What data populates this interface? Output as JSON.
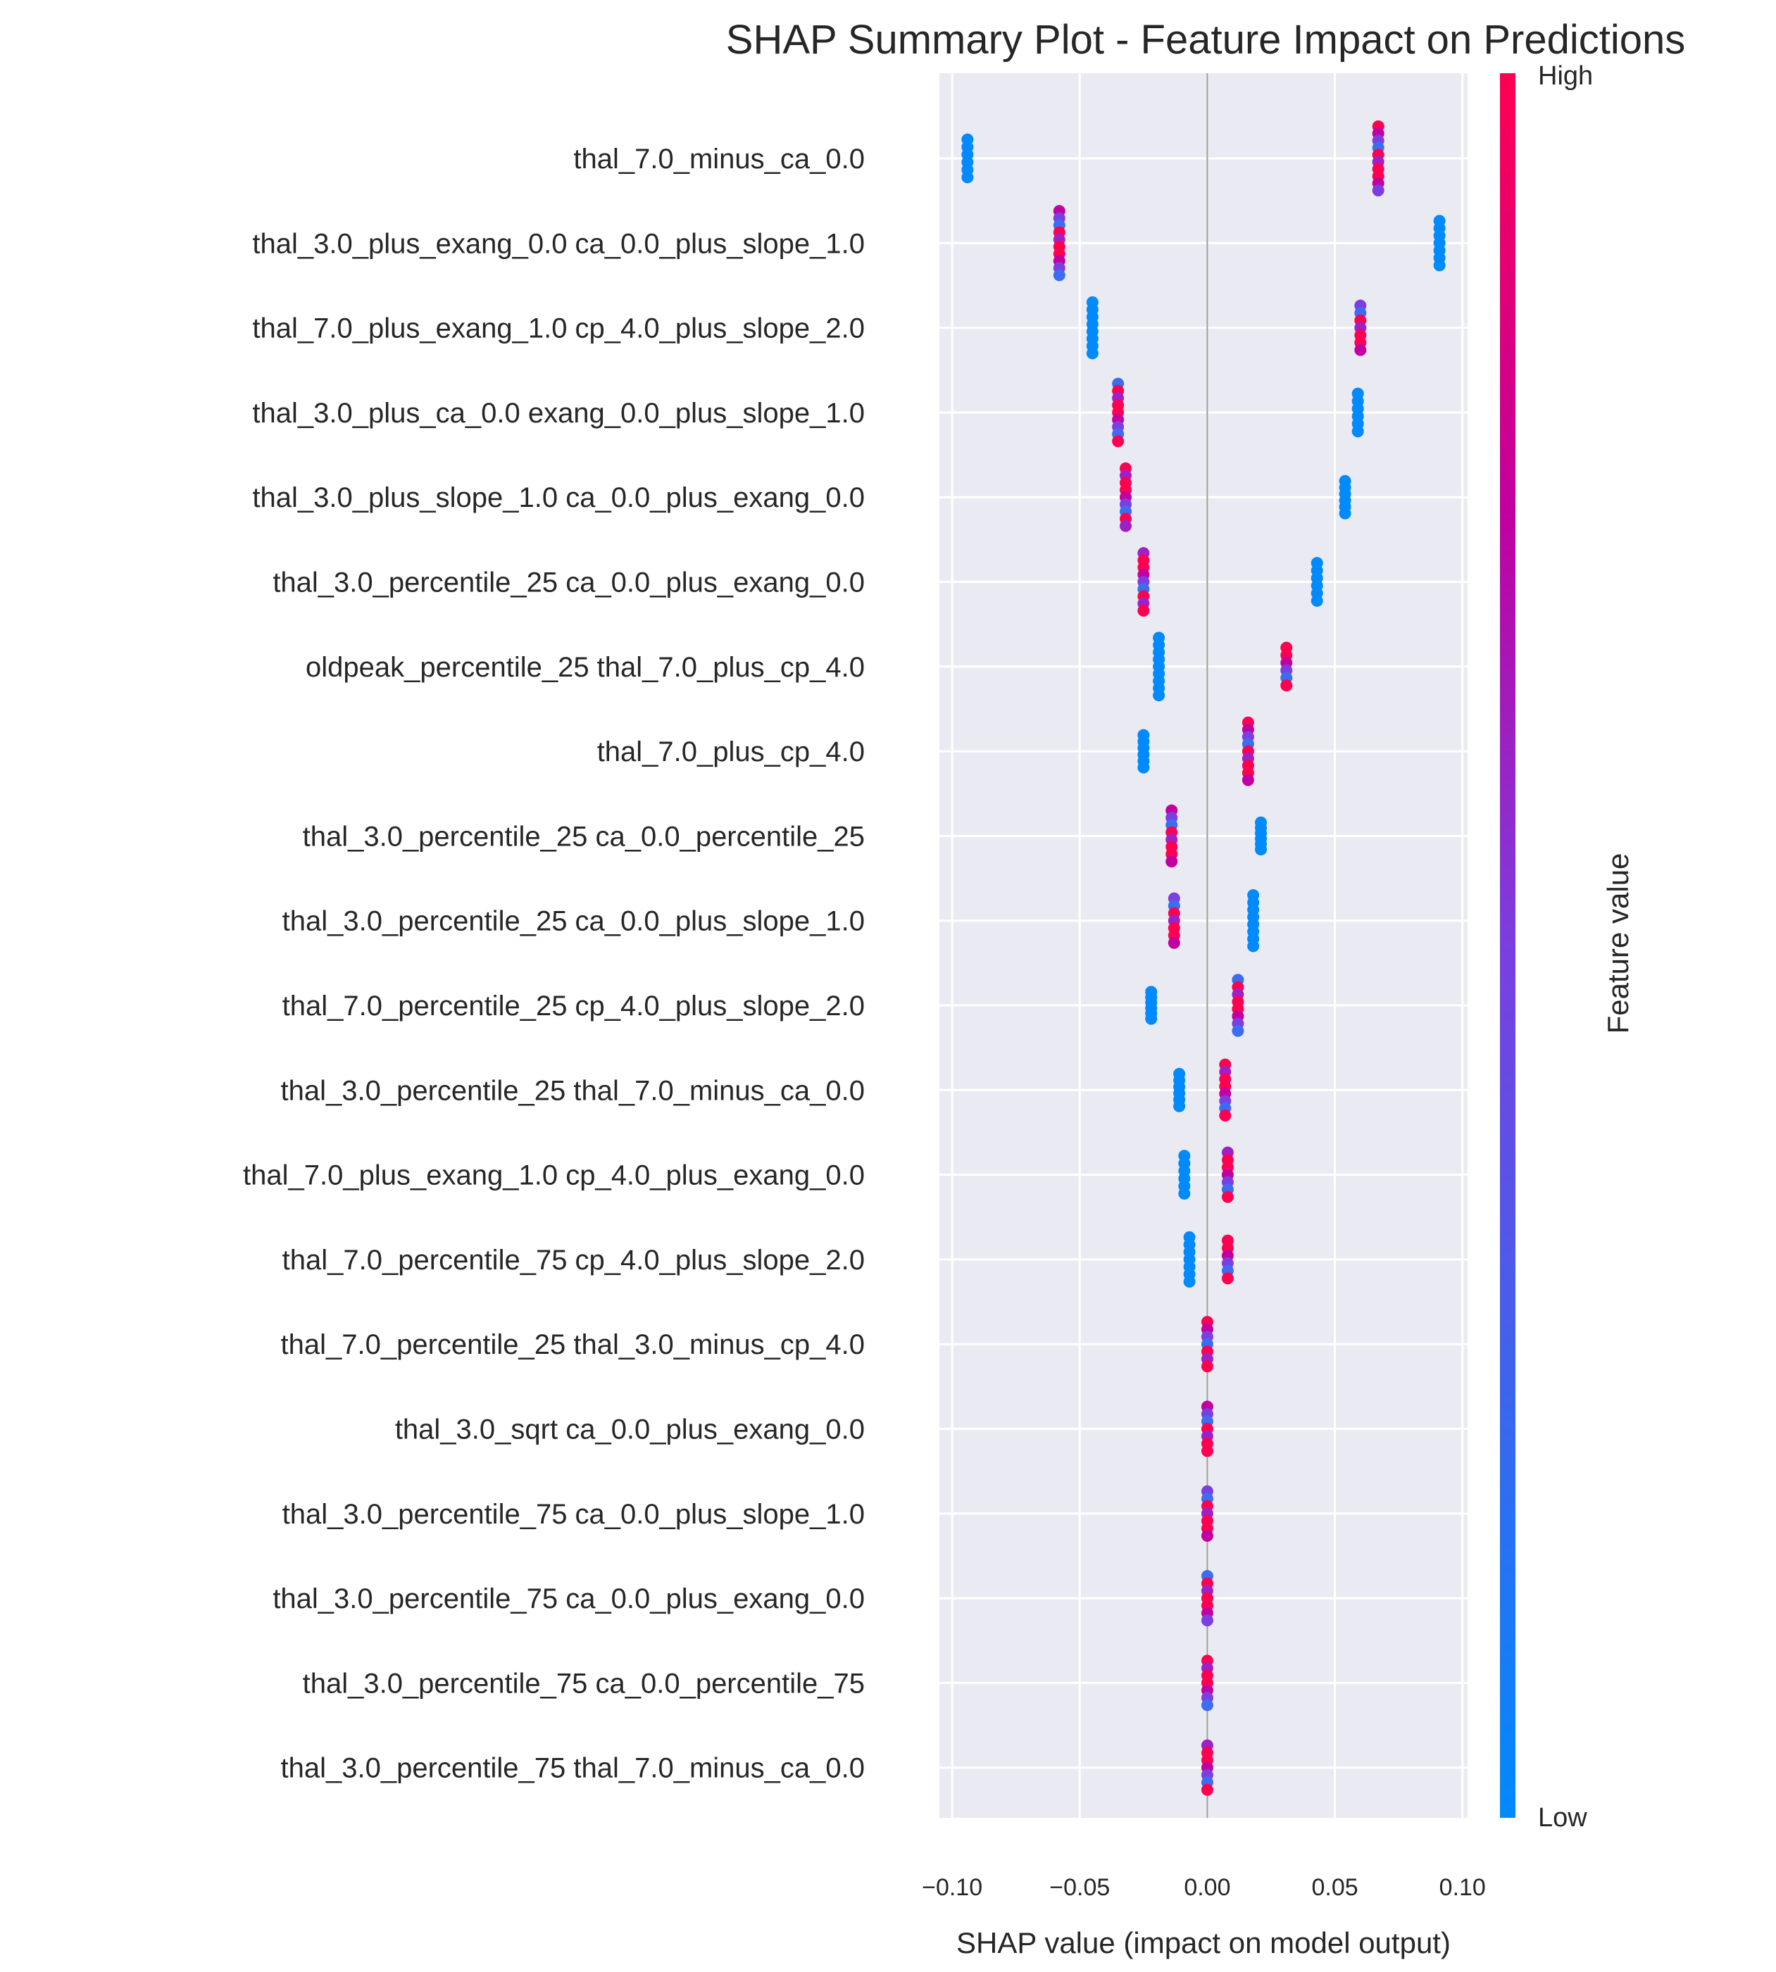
{
  "chart_data": {
    "type": "scatter",
    "title": "SHAP Summary Plot - Feature Impact on Predictions",
    "xlabel": "SHAP value (impact on model output)",
    "xlim": [
      -0.105,
      0.102
    ],
    "xticks": [
      -0.1,
      -0.05,
      0.0,
      0.05,
      0.1
    ],
    "xtick_labels": [
      "−0.10",
      "−0.05",
      "0.00",
      "0.05",
      "0.10"
    ],
    "grid": true,
    "colorbar": {
      "label": "Feature value",
      "high_label": "High",
      "low_label": "Low",
      "low_color": "#008afb",
      "high_color": "#ff0051"
    },
    "features": [
      {
        "name": "thal_7.0_minus_ca_0.0",
        "clusters": [
          {
            "x": -0.094,
            "span": 0.7,
            "color": "low"
          },
          {
            "x": 0.067,
            "span": 1.1,
            "color": "mixed"
          }
        ]
      },
      {
        "name": "thal_3.0_plus_exang_0.0 ca_0.0_plus_slope_1.0",
        "clusters": [
          {
            "x": -0.058,
            "span": 1.1,
            "color": "mixed"
          },
          {
            "x": 0.091,
            "span": 0.8,
            "color": "low"
          }
        ]
      },
      {
        "name": "thal_7.0_plus_exang_1.0 cp_4.0_plus_slope_2.0",
        "clusters": [
          {
            "x": -0.045,
            "span": 0.9,
            "color": "low"
          },
          {
            "x": 0.06,
            "span": 0.8,
            "color": "mixed"
          }
        ]
      },
      {
        "name": "thal_3.0_plus_ca_0.0 exang_0.0_plus_slope_1.0",
        "clusters": [
          {
            "x": -0.035,
            "span": 1.0,
            "color": "mixed"
          },
          {
            "x": 0.059,
            "span": 0.7,
            "color": "low"
          }
        ]
      },
      {
        "name": "thal_3.0_plus_slope_1.0 ca_0.0_plus_exang_0.0",
        "clusters": [
          {
            "x": -0.032,
            "span": 1.0,
            "color": "mixed"
          },
          {
            "x": 0.054,
            "span": 0.6,
            "color": "low"
          }
        ]
      },
      {
        "name": "thal_3.0_percentile_25 ca_0.0_plus_exang_0.0",
        "clusters": [
          {
            "x": -0.025,
            "span": 1.0,
            "color": "mixed"
          },
          {
            "x": 0.043,
            "span": 0.7,
            "color": "low"
          }
        ]
      },
      {
        "name": "oldpeak_percentile_25 thal_7.0_plus_cp_4.0",
        "clusters": [
          {
            "x": -0.019,
            "span": 1.0,
            "color": "low"
          },
          {
            "x": 0.031,
            "span": 0.7,
            "color": "mixed"
          }
        ]
      },
      {
        "name": "thal_7.0_plus_cp_4.0",
        "clusters": [
          {
            "x": -0.025,
            "span": 0.6,
            "color": "low"
          },
          {
            "x": 0.016,
            "span": 1.0,
            "color": "mixed"
          }
        ]
      },
      {
        "name": "thal_3.0_percentile_25 ca_0.0_percentile_25",
        "clusters": [
          {
            "x": -0.014,
            "span": 0.9,
            "color": "mixed"
          },
          {
            "x": 0.021,
            "span": 0.5,
            "color": "low"
          }
        ]
      },
      {
        "name": "thal_3.0_percentile_25 ca_0.0_plus_slope_1.0",
        "clusters": [
          {
            "x": -0.013,
            "span": 0.8,
            "color": "mixed"
          },
          {
            "x": 0.018,
            "span": 0.9,
            "color": "low"
          }
        ]
      },
      {
        "name": "thal_7.0_percentile_25 cp_4.0_plus_slope_2.0",
        "clusters": [
          {
            "x": -0.022,
            "span": 0.5,
            "color": "low"
          },
          {
            "x": 0.012,
            "span": 0.9,
            "color": "mixed"
          }
        ]
      },
      {
        "name": "thal_3.0_percentile_25 thal_7.0_minus_ca_0.0",
        "clusters": [
          {
            "x": -0.011,
            "span": 0.6,
            "color": "low"
          },
          {
            "x": 0.007,
            "span": 0.9,
            "color": "mixed"
          }
        ]
      },
      {
        "name": "thal_7.0_plus_exang_1.0 cp_4.0_plus_exang_0.0",
        "clusters": [
          {
            "x": -0.009,
            "span": 0.7,
            "color": "low"
          },
          {
            "x": 0.008,
            "span": 0.8,
            "color": "mixed"
          }
        ]
      },
      {
        "name": "thal_7.0_percentile_75 cp_4.0_plus_slope_2.0",
        "clusters": [
          {
            "x": -0.007,
            "span": 0.8,
            "color": "low"
          },
          {
            "x": 0.008,
            "span": 0.7,
            "color": "mixed"
          }
        ]
      },
      {
        "name": "thal_7.0_percentile_25 thal_3.0_minus_cp_4.0",
        "clusters": [
          {
            "x": 0.0,
            "span": 0.8,
            "color": "mixed"
          }
        ]
      },
      {
        "name": "thal_3.0_sqrt ca_0.0_plus_exang_0.0",
        "clusters": [
          {
            "x": 0.0,
            "span": 0.8,
            "color": "mixed"
          }
        ]
      },
      {
        "name": "thal_3.0_percentile_75 ca_0.0_plus_slope_1.0",
        "clusters": [
          {
            "x": 0.0,
            "span": 0.8,
            "color": "mixed"
          }
        ]
      },
      {
        "name": "thal_3.0_percentile_75 ca_0.0_plus_exang_0.0",
        "clusters": [
          {
            "x": 0.0,
            "span": 0.8,
            "color": "mixed"
          }
        ]
      },
      {
        "name": "thal_3.0_percentile_75 ca_0.0_percentile_75",
        "clusters": [
          {
            "x": 0.0,
            "span": 0.8,
            "color": "mixed"
          }
        ]
      },
      {
        "name": "thal_3.0_percentile_75 thal_7.0_minus_ca_0.0",
        "clusters": [
          {
            "x": 0.0,
            "span": 0.8,
            "color": "mixed"
          }
        ]
      }
    ]
  }
}
